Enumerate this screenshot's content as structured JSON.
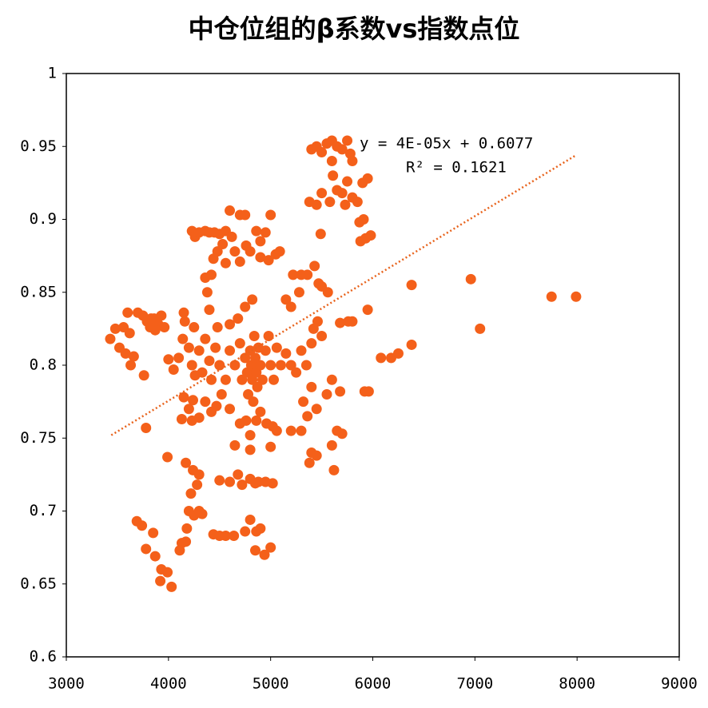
{
  "chart_data": {
    "type": "scatter",
    "title": "中仓位组的β系数vs指数点位",
    "color": "#f4601a",
    "x": [
      3430,
      3480,
      3520,
      3560,
      3600,
      3620,
      3580,
      3630,
      3660,
      3700,
      3750,
      3790,
      3820,
      3860,
      3900,
      3930,
      3960,
      3760,
      3780,
      3870,
      3830,
      3690,
      3740,
      3780,
      3850,
      3870,
      3930,
      3920,
      3990,
      4030,
      3990,
      4000,
      4050,
      4100,
      4150,
      4140,
      4200,
      4230,
      4260,
      4300,
      4330,
      4360,
      4400,
      4420,
      4460,
      4480,
      4500,
      4150,
      4200,
      4240,
      4300,
      4360,
      4420,
      4470,
      4130,
      4230,
      4160,
      4250,
      4400,
      4380,
      4360,
      4420,
      4440,
      4230,
      4260,
      4300,
      4360,
      4400,
      4450,
      4500,
      4560,
      4600,
      4700,
      4750,
      4620,
      4650,
      4700,
      4480,
      4530,
      4560,
      4760,
      4800,
      4860,
      4900,
      4950,
      5000,
      4900,
      4980,
      5050,
      5090,
      4820,
      4750,
      4680,
      4600,
      4170,
      4240,
      4300,
      4280,
      4220,
      4200,
      4250,
      4300,
      4330,
      4180,
      4130,
      4170,
      4110,
      4440,
      4500,
      4560,
      4640,
      4750,
      4800,
      4860,
      4900,
      4850,
      4940,
      5000,
      4500,
      4600,
      4680,
      4720,
      4800,
      4880,
      4950,
      5020,
      4850,
      4600,
      4650,
      4700,
      4720,
      4750,
      4770,
      4780,
      4800,
      4810,
      4820,
      4830,
      4840,
      4850,
      4860,
      4870,
      4880,
      4900,
      4920,
      4950,
      4980,
      5000,
      5030,
      5060,
      5100,
      4700,
      4760,
      4800,
      4860,
      4900,
      4960,
      5020,
      5060,
      4650,
      4800,
      5000,
      4600,
      4560,
      4520,
      5150,
      5200,
      5250,
      5300,
      5350,
      5400,
      5420,
      5460,
      5500,
      5150,
      5200,
      5280,
      5220,
      5300,
      5360,
      5430,
      5470,
      5500,
      5320,
      5400,
      5450,
      5200,
      5300,
      5360,
      5400,
      5450,
      5380,
      5600,
      5620,
      5650,
      5700,
      5550,
      5600,
      5680,
      5920,
      5960,
      5680,
      5760,
      5950,
      5800,
      5560,
      5400,
      5450,
      5500,
      5550,
      5600,
      5650,
      5700,
      5750,
      5780,
      5600,
      5610,
      5650,
      5700,
      5730,
      5800,
      5850,
      5900,
      5950,
      5750,
      5800,
      5380,
      5450,
      5500,
      5580,
      5490,
      5870,
      5910,
      5880,
      5930,
      5980,
      6080,
      6180,
      6250,
      6380,
      6380,
      6960,
      7050,
      7750,
      7990
    ],
    "values": [
      0.818,
      0.825,
      0.812,
      0.826,
      0.836,
      0.822,
      0.808,
      0.8,
      0.806,
      0.836,
      0.834,
      0.83,
      0.826,
      0.832,
      0.828,
      0.834,
      0.826,
      0.793,
      0.757,
      0.824,
      0.832,
      0.693,
      0.69,
      0.674,
      0.685,
      0.669,
      0.66,
      0.652,
      0.658,
      0.648,
      0.737,
      0.804,
      0.797,
      0.805,
      0.836,
      0.818,
      0.812,
      0.8,
      0.793,
      0.81,
      0.795,
      0.818,
      0.803,
      0.79,
      0.812,
      0.826,
      0.8,
      0.778,
      0.77,
      0.776,
      0.764,
      0.775,
      0.768,
      0.772,
      0.763,
      0.762,
      0.83,
      0.826,
      0.838,
      0.85,
      0.86,
      0.862,
      0.873,
      0.892,
      0.888,
      0.891,
      0.892,
      0.891,
      0.891,
      0.89,
      0.892,
      0.906,
      0.903,
      0.903,
      0.888,
      0.878,
      0.871,
      0.878,
      0.883,
      0.87,
      0.882,
      0.878,
      0.892,
      0.885,
      0.891,
      0.903,
      0.874,
      0.872,
      0.876,
      0.878,
      0.845,
      0.84,
      0.832,
      0.828,
      0.733,
      0.728,
      0.725,
      0.718,
      0.712,
      0.7,
      0.697,
      0.7,
      0.698,
      0.688,
      0.678,
      0.679,
      0.673,
      0.684,
      0.683,
      0.683,
      0.683,
      0.686,
      0.694,
      0.686,
      0.688,
      0.673,
      0.67,
      0.675,
      0.721,
      0.72,
      0.725,
      0.718,
      0.722,
      0.72,
      0.72,
      0.719,
      0.719,
      0.81,
      0.8,
      0.815,
      0.79,
      0.805,
      0.795,
      0.78,
      0.81,
      0.8,
      0.79,
      0.775,
      0.82,
      0.805,
      0.795,
      0.785,
      0.812,
      0.8,
      0.79,
      0.81,
      0.82,
      0.8,
      0.79,
      0.812,
      0.8,
      0.76,
      0.762,
      0.752,
      0.762,
      0.768,
      0.76,
      0.758,
      0.755,
      0.745,
      0.742,
      0.744,
      0.77,
      0.79,
      0.78,
      0.808,
      0.8,
      0.795,
      0.81,
      0.8,
      0.815,
      0.825,
      0.83,
      0.82,
      0.845,
      0.84,
      0.85,
      0.862,
      0.862,
      0.862,
      0.868,
      0.856,
      0.854,
      0.775,
      0.785,
      0.77,
      0.755,
      0.755,
      0.765,
      0.74,
      0.738,
      0.733,
      0.745,
      0.728,
      0.755,
      0.753,
      0.78,
      0.79,
      0.782,
      0.782,
      0.782,
      0.829,
      0.83,
      0.838,
      0.83,
      0.85,
      0.948,
      0.95,
      0.946,
      0.952,
      0.954,
      0.95,
      0.948,
      0.954,
      0.945,
      0.94,
      0.93,
      0.92,
      0.918,
      0.91,
      0.915,
      0.912,
      0.925,
      0.928,
      0.926,
      0.94,
      0.912,
      0.91,
      0.918,
      0.912,
      0.89,
      0.898,
      0.9,
      0.885,
      0.887,
      0.889,
      0.805,
      0.805,
      0.808,
      0.814,
      0.855,
      0.859,
      0.825,
      0.847,
      0.847
    ],
    "trendline": {
      "x": [
        3440,
        7990
      ],
      "values": [
        0.752,
        0.944
      ],
      "color": "#e8631c"
    },
    "annotations": [
      "y = 4E-05x + 0.6077",
      "R² = 0.1621"
    ],
    "xlim": [
      3000,
      9000
    ],
    "xticks": [
      3000,
      4000,
      5000,
      6000,
      7000,
      8000,
      9000
    ],
    "ylim": [
      0.6,
      1
    ],
    "yticks": [
      0.6,
      0.65,
      0.7,
      0.75,
      0.8,
      0.85,
      0.9,
      0.95,
      1
    ]
  }
}
